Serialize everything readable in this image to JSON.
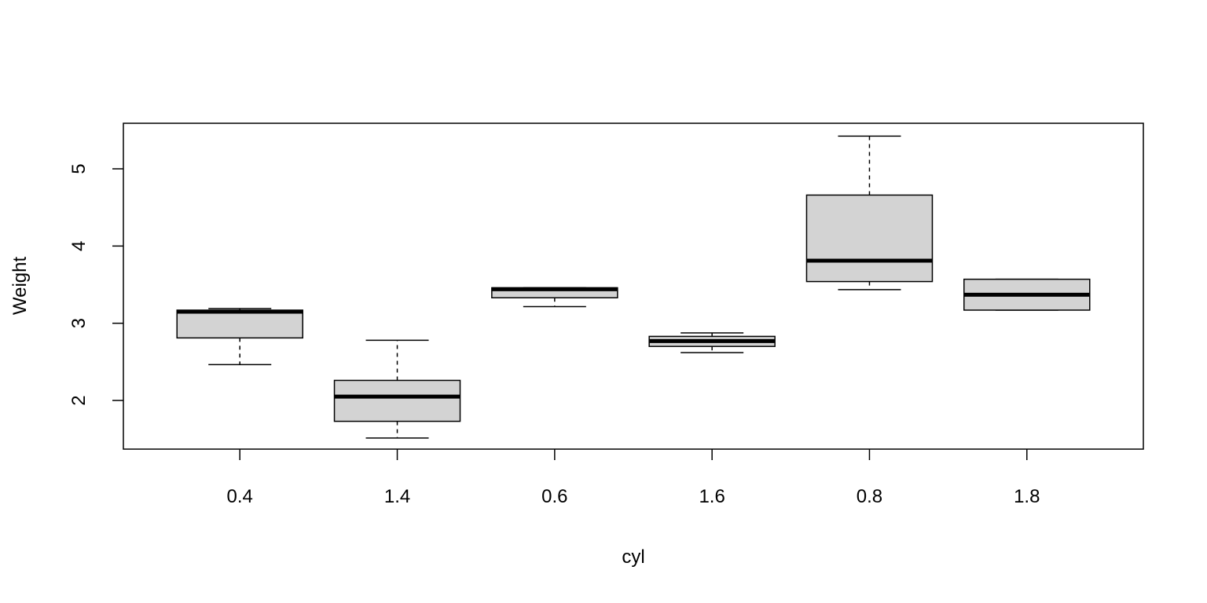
{
  "chart_data": {
    "type": "boxplot",
    "title": "",
    "xlabel": "cyl",
    "ylabel": "Weight",
    "categories": [
      "0.4",
      "1.4",
      "0.6",
      "1.6",
      "0.8",
      "1.8"
    ],
    "boxes": [
      {
        "category": "0.4",
        "whisker_low": 2.465,
        "q1": 2.81,
        "median": 3.15,
        "q3": 3.17,
        "whisker_high": 3.19
      },
      {
        "category": "1.4",
        "whisker_low": 1.513,
        "q1": 1.73,
        "median": 2.05,
        "q3": 2.26,
        "whisker_high": 2.78
      },
      {
        "category": "0.6",
        "whisker_low": 3.215,
        "q1": 3.33,
        "median": 3.44,
        "q3": 3.46,
        "whisker_high": 3.46
      },
      {
        "category": "1.6",
        "whisker_low": 2.62,
        "q1": 2.7,
        "median": 2.77,
        "q3": 2.83,
        "whisker_high": 2.875
      },
      {
        "category": "0.8",
        "whisker_low": 3.435,
        "q1": 3.54,
        "median": 3.81,
        "q3": 4.66,
        "whisker_high": 5.424
      },
      {
        "category": "1.8",
        "whisker_low": 3.17,
        "q1": 3.17,
        "median": 3.37,
        "q3": 3.57,
        "whisker_high": 3.57
      }
    ],
    "ylim": [
      1.37,
      5.59
    ],
    "yticks": [
      "2",
      "3",
      "4",
      "5"
    ],
    "grid": false,
    "legend": "none",
    "colors": {
      "box_fill": "#d3d3d3",
      "stroke": "#000000"
    }
  }
}
